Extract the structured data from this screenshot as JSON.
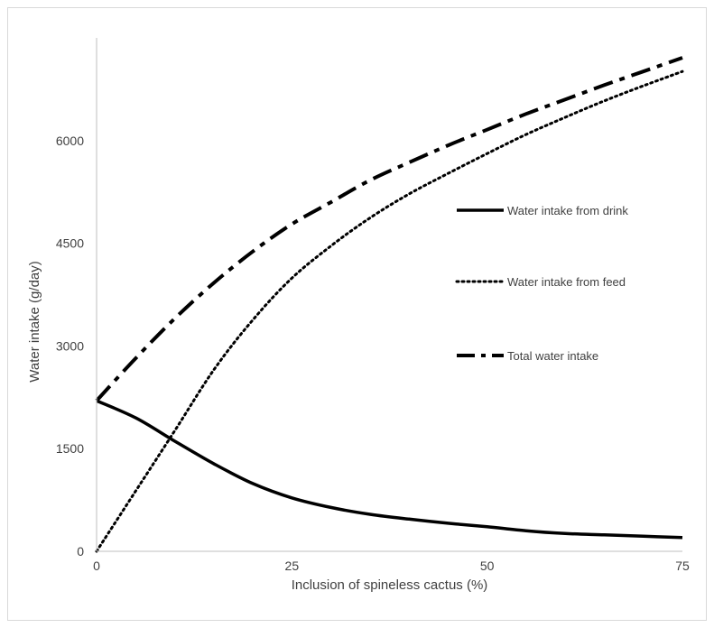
{
  "chart_data": {
    "type": "line",
    "title": "",
    "xlabel": "Inclusion of spineless cactus (%)",
    "ylabel": "Water intake (g/day)",
    "xlim": [
      0,
      75
    ],
    "ylim": [
      0,
      7500
    ],
    "xticks": [
      0,
      25,
      50,
      75
    ],
    "yticks": [
      0,
      1500,
      3000,
      4500,
      6000
    ],
    "grid": false,
    "legend_position": "right",
    "series": [
      {
        "name": "Water intake from drink",
        "style": "solid",
        "color": "#000000",
        "x": [
          0,
          5,
          10,
          15,
          20,
          25,
          30,
          35,
          40,
          45,
          50,
          55,
          60,
          65,
          70,
          75
        ],
        "y": [
          2200,
          1950,
          1610,
          1280,
          990,
          780,
          640,
          540,
          470,
          410,
          360,
          300,
          260,
          240,
          220,
          200
        ]
      },
      {
        "name": "Water intake from feed",
        "style": "dotted",
        "color": "#000000",
        "x": [
          0,
          5,
          10,
          15,
          20,
          25,
          30,
          35,
          40,
          45,
          50,
          55,
          60,
          65,
          70,
          75
        ],
        "y": [
          0,
          880,
          1760,
          2650,
          3380,
          3990,
          4460,
          4870,
          5220,
          5520,
          5810,
          6090,
          6340,
          6580,
          6800,
          7010
        ]
      },
      {
        "name": "Total water intake",
        "style": "dashdot",
        "color": "#000000",
        "x": [
          0,
          5,
          10,
          15,
          20,
          25,
          30,
          35,
          40,
          45,
          50,
          55,
          60,
          65,
          70,
          75
        ],
        "y": [
          2200,
          2820,
          3400,
          3920,
          4380,
          4780,
          5100,
          5420,
          5680,
          5930,
          6160,
          6390,
          6600,
          6810,
          7010,
          7210
        ]
      }
    ]
  }
}
